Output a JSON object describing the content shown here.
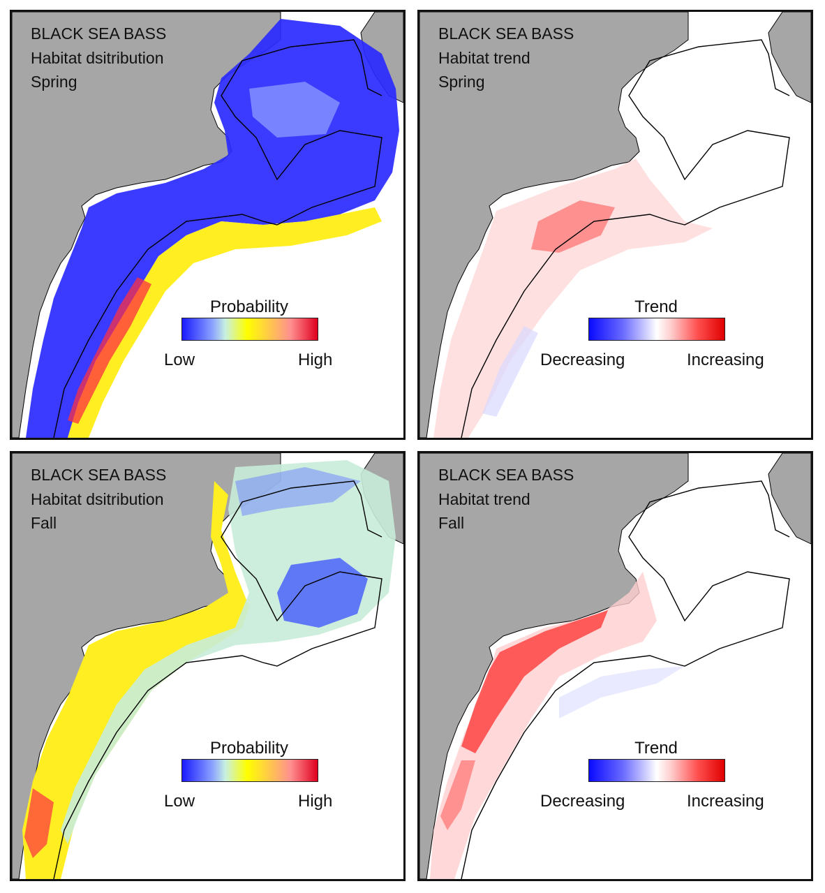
{
  "panels": [
    {
      "id": "spring-distribution",
      "line1": "BLACK SEA BASS",
      "line2": "Habitat dsitribution",
      "line3": "Spring",
      "legend": {
        "title": "Probability",
        "low": "Low",
        "high": "High",
        "type": "probability"
      }
    },
    {
      "id": "spring-trend",
      "line1": "BLACK SEA BASS",
      "line2": "Habitat trend",
      "line3": "Spring",
      "legend": {
        "title": "Trend",
        "low": "Decreasing",
        "high": "Increasing",
        "type": "trend"
      }
    },
    {
      "id": "fall-distribution",
      "line1": "BLACK SEA BASS",
      "line2": "Habitat dsitribution",
      "line3": "Fall",
      "legend": {
        "title": "Probability",
        "low": "Low",
        "high": "High",
        "type": "probability"
      }
    },
    {
      "id": "fall-trend",
      "line1": "BLACK SEA BASS",
      "line2": "Habitat trend",
      "line3": "Fall",
      "legend": {
        "title": "Trend",
        "low": "Decreasing",
        "high": "Increasing",
        "type": "trend"
      }
    }
  ],
  "colors": {
    "land": "#a6a6a6",
    "water": "#ffffff",
    "probability_scale": [
      "#1a1aff",
      "#8aa0ff",
      "#c8f0e0",
      "#ffff00",
      "#ffd040",
      "#ff8080",
      "#e00020"
    ],
    "trend_scale": [
      "#0a0aff",
      "#6a6aff",
      "#d0d0ff",
      "#ffffff",
      "#ffc8c8",
      "#ff5050",
      "#e00000"
    ]
  }
}
